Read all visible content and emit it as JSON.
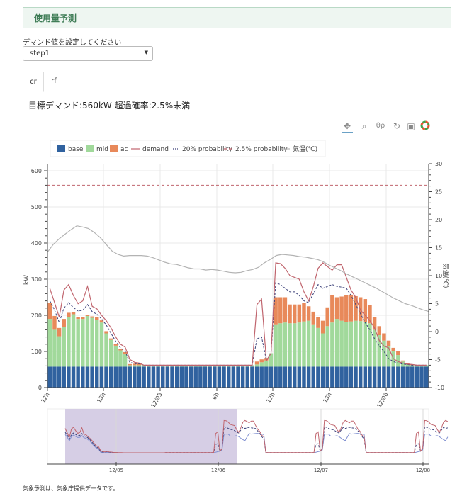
{
  "header": {
    "title": "使用量予測"
  },
  "demand_select": {
    "label": "デマンド値を設定してください",
    "value": "step1"
  },
  "tabs": [
    {
      "label": "cr",
      "active": true
    },
    {
      "label": "rf",
      "active": false
    }
  ],
  "target": {
    "text": "目標デマンド:560kW 超過確率:2.5%未満"
  },
  "toolbar": {
    "tools": [
      {
        "name": "pan-icon",
        "glyph": "✥",
        "active": true
      },
      {
        "name": "box-zoom-icon",
        "glyph": "⌕",
        "active": false
      },
      {
        "name": "wheel-zoom-icon",
        "glyph": "⊕",
        "active": false
      },
      {
        "name": "reset-icon",
        "glyph": "↻",
        "active": false
      },
      {
        "name": "save-icon",
        "glyph": "▣",
        "active": false
      },
      {
        "name": "bokeh-logo-icon",
        "glyph": "✿",
        "active": false
      }
    ]
  },
  "colors": {
    "base": "#30629f",
    "mid": "#a1d99b",
    "ac": "#e8895a",
    "demand": "#c0656e",
    "p20": "#3a3f78",
    "p25": "#c0656e",
    "temp": "#b3b3b3",
    "range": "#cfc6e0"
  },
  "footer": {
    "note": "気象予測は、気象庁提供データです。"
  },
  "chart_data": {
    "type": "bar",
    "title": "",
    "xlabel": "",
    "ylabel": "kW",
    "ylabel_right": "気温(℃)",
    "ylim": [
      0,
      620
    ],
    "ylim_right": [
      -10,
      30
    ],
    "yticks": [
      0,
      100,
      200,
      300,
      400,
      500,
      600
    ],
    "yticks_right": [
      -10,
      -5,
      0,
      5,
      10,
      15,
      20,
      25,
      30
    ],
    "xticks": [
      "12h",
      "18h",
      "12/05",
      "6h",
      "12h",
      "18h",
      "12/06"
    ],
    "legend": [
      "base",
      "mid",
      "ac",
      "demand",
      "20% probability",
      "2.5% probability",
      "気温(℃)"
    ],
    "target_line": 560,
    "interval": "30min",
    "series": [
      {
        "name": "base",
        "values": [
          58,
          58,
          58,
          58,
          58,
          58,
          58,
          58,
          58,
          58,
          58,
          58,
          58,
          58,
          58,
          58,
          58,
          58,
          58,
          58,
          58,
          58,
          58,
          58,
          58,
          58,
          58,
          58,
          58,
          58,
          58,
          58,
          58,
          58,
          58,
          58,
          58,
          58,
          58,
          58,
          58,
          58,
          58,
          58,
          58,
          58,
          58,
          58,
          58,
          58,
          58,
          58,
          58,
          58,
          58,
          58,
          58,
          58,
          58,
          58,
          58,
          58,
          58,
          58,
          58,
          58,
          58,
          58,
          58,
          58,
          58,
          58,
          58,
          58,
          58,
          58,
          58,
          58,
          58,
          58,
          58
        ]
      },
      {
        "name": "mid",
        "values": [
          132,
          102,
          84,
          110,
          137,
          145,
          132,
          132,
          140,
          135,
          130,
          122,
          92,
          74,
          58,
          45,
          34,
          4,
          4,
          4,
          3,
          3,
          2,
          2,
          2,
          2,
          2,
          2,
          2,
          2,
          2,
          2,
          2,
          2,
          2,
          2,
          2,
          2,
          2,
          2,
          2,
          2,
          2,
          2,
          2,
          2,
          2,
          0,
          0,
          0,
          0,
          0,
          0,
          0,
          0,
          0,
          0,
          0,
          0,
          0,
          0,
          0,
          0,
          0,
          0,
          0,
          0,
          0,
          0,
          0,
          0,
          0,
          0,
          0,
          0,
          0,
          0,
          0,
          0,
          0,
          0
        ]
      },
      {
        "name": "ac",
        "values": [
          45,
          38,
          23,
          22,
          12,
          5,
          6,
          6,
          3,
          4,
          7,
          6,
          6,
          4,
          4,
          3,
          6,
          3,
          4,
          6,
          4,
          2,
          2,
          0,
          0,
          0,
          0,
          0,
          0,
          0,
          0,
          0,
          0,
          0,
          0,
          0,
          0,
          0,
          0,
          0,
          0,
          0,
          0,
          0,
          0,
          0,
          0,
          0,
          0,
          0,
          0,
          0,
          0,
          0,
          0,
          0,
          0,
          0,
          0,
          0,
          0,
          0,
          0,
          0,
          0,
          0,
          0,
          0,
          0,
          0,
          0,
          0,
          0,
          0,
          0,
          0,
          0,
          0,
          0,
          0,
          0
        ]
      },
      {
        "name": "demand",
        "values": [
          275,
          235,
          195,
          270,
          285,
          255,
          232,
          240,
          280,
          225,
          218,
          200,
          185,
          165,
          140,
          120,
          112,
          78,
          70,
          68,
          72,
          68,
          66,
          64,
          63,
          62,
          62,
          61,
          60,
          60,
          60,
          60,
          60,
          60,
          60,
          60,
          60,
          60,
          60,
          60,
          60,
          60,
          60,
          60,
          60,
          60,
          60,
          60,
          60,
          60,
          60,
          60,
          60,
          60,
          60,
          60,
          60,
          60,
          60,
          60,
          60,
          60,
          60,
          60,
          60,
          60,
          60,
          60,
          60,
          60,
          60,
          60,
          60,
          60,
          60,
          60,
          60,
          60,
          60,
          60,
          60
        ]
      },
      {
        "name": "20% probability",
        "values": [
          240,
          215,
          180,
          220,
          235,
          222,
          212,
          214,
          230,
          210,
          203,
          190,
          173,
          150,
          128,
          110,
          100,
          70,
          66,
          66,
          70,
          66,
          64,
          62,
          61,
          61,
          60,
          60,
          60,
          60,
          60,
          60,
          60,
          60,
          60,
          60,
          60,
          60,
          60,
          60,
          60,
          60,
          60,
          60,
          60,
          60,
          60,
          60,
          60,
          60,
          60,
          60,
          60,
          60,
          60,
          60,
          60,
          60,
          60,
          60,
          60,
          60,
          60,
          60,
          60,
          60,
          60,
          60,
          60,
          60,
          60,
          60,
          60,
          60,
          60,
          60,
          60,
          60,
          60,
          60,
          60
        ]
      },
      {
        "name": "2.5% probability",
        "values": [
          560,
          560,
          560,
          560,
          560,
          560,
          560,
          560,
          560,
          560,
          560,
          560,
          560,
          560,
          560,
          560,
          560,
          560,
          560,
          560,
          560,
          560,
          560,
          560,
          560,
          560,
          560,
          560,
          560,
          560,
          560,
          560,
          560,
          560,
          560,
          560,
          560,
          560,
          560,
          560,
          560,
          560,
          560,
          560,
          560,
          560,
          560,
          560,
          560,
          560,
          560,
          560,
          560,
          560,
          560,
          560,
          560,
          560,
          560,
          560,
          560,
          560,
          560,
          560,
          560,
          560,
          560,
          560,
          560,
          560,
          560,
          560,
          560,
          560,
          560,
          560,
          560,
          560,
          560,
          560,
          560
        ]
      },
      {
        "name": "気温(℃)",
        "values": [
          14.2,
          15.6,
          16.6,
          17.4,
          18.2,
          18.9,
          18.7,
          18.4,
          17.7,
          16.8,
          15.6,
          14.4,
          13.8,
          13.5,
          13.6,
          13.6,
          13.6,
          13.5,
          13.2,
          12.8,
          12.4,
          12.1,
          12.0,
          11.7,
          11.4,
          11.2,
          11.2,
          11.0,
          11.1,
          11.0,
          10.8,
          10.6,
          10.5,
          10.6,
          10.9,
          11.1,
          11.5,
          12.3,
          12.9,
          13.6,
          13.8,
          13.7,
          13.6,
          13.4,
          13.3,
          13.1,
          12.9,
          12.5,
          11.9,
          11.4,
          10.9,
          10.3,
          9.8,
          9.3,
          8.8,
          8.3,
          7.8,
          7.2,
          6.6,
          6.0,
          5.5,
          5.0,
          4.7,
          4.3,
          3.9,
          3.6
        ]
      }
    ],
    "day2": {
      "base": 58,
      "mid_tops": [
        62,
        62,
        62,
        62,
        62,
        62,
        62,
        62,
        62,
        62,
        62,
        62,
        62,
        62,
        62,
        62,
        62,
        62,
        62,
        62,
        62,
        62,
        62,
        62,
        64,
        70,
        75,
        95,
        175,
        178,
        180,
        178,
        178,
        180,
        183,
        185,
        175,
        165,
        150,
        170,
        180,
        190,
        185,
        182,
        183,
        185,
        184,
        182,
        178,
        160,
        145,
        130,
        115,
        100,
        90,
        72,
        65,
        62,
        62,
        62,
        62
      ],
      "ac_tops": [
        62,
        62,
        62,
        62,
        62,
        62,
        62,
        62,
        62,
        62,
        62,
        62,
        62,
        62,
        62,
        62,
        62,
        62,
        62,
        62,
        62,
        62,
        62,
        62,
        72,
        78,
        82,
        95,
        250,
        250,
        250,
        230,
        230,
        230,
        235,
        225,
        210,
        195,
        185,
        222,
        255,
        250,
        252,
        255,
        257,
        253,
        250,
        245,
        228,
        195,
        170,
        150,
        130,
        110,
        100,
        75,
        68,
        64,
        62,
        62,
        62
      ],
      "demand": [
        62,
        62,
        62,
        62,
        62,
        62,
        62,
        62,
        62,
        62,
        62,
        62,
        62,
        62,
        62,
        62,
        62,
        62,
        62,
        62,
        62,
        62,
        62,
        62,
        230,
        245,
        75,
        95,
        345,
        343,
        330,
        310,
        305,
        300,
        265,
        240,
        280,
        330,
        345,
        335,
        325,
        340,
        340,
        305,
        270,
        250,
        215,
        200,
        185,
        165,
        130,
        115,
        110,
        80,
        72,
        68,
        65,
        64,
        62,
        62,
        62
      ],
      "p20": [
        62,
        62,
        62,
        62,
        62,
        62,
        62,
        62,
        62,
        62,
        62,
        62,
        62,
        62,
        62,
        62,
        62,
        62,
        62,
        62,
        62,
        62,
        62,
        62,
        135,
        140,
        75,
        95,
        290,
        285,
        275,
        265,
        265,
        255,
        240,
        235,
        260,
        285,
        275,
        280,
        285,
        280,
        278,
        275,
        255,
        230,
        205,
        180,
        160,
        135,
        115,
        100,
        80,
        72,
        68,
        65,
        64,
        62,
        62,
        62,
        62
      ]
    },
    "range_tool": {
      "x_ticks": [
        "12/05",
        "12/06",
        "12/07",
        "12/08"
      ],
      "selected_range": [
        "12/04 12:00",
        "12/06 05:30"
      ]
    }
  }
}
